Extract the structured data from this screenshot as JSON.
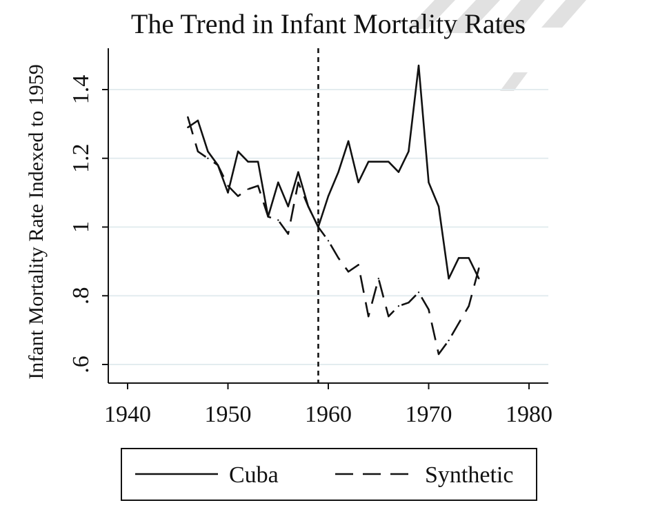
{
  "chart_data": {
    "type": "line",
    "title": "The Trend in Infant Mortality Rates",
    "xlabel": "",
    "ylabel": "Infant Mortality Rate Indexed to 1959",
    "xlim": [
      1938,
      1982
    ],
    "ylim": [
      0.55,
      1.52
    ],
    "xticks": [
      1940,
      1950,
      1960,
      1970,
      1980
    ],
    "xtick_labels": [
      "1940",
      "1950",
      "1960",
      "1970",
      "1980"
    ],
    "yticks": [
      0.6,
      0.8,
      1.0,
      1.2,
      1.4
    ],
    "ytick_labels": [
      ".6",
      ".8",
      "1",
      "1.2",
      "1.4"
    ],
    "grid": true,
    "reference_line_x": 1959,
    "legend_position": "bottom",
    "series": [
      {
        "name": "Cuba",
        "style": "solid",
        "x": [
          1946,
          1947,
          1948,
          1949,
          1950,
          1951,
          1952,
          1953,
          1954,
          1955,
          1956,
          1957,
          1958,
          1959,
          1960,
          1961,
          1962,
          1963,
          1964,
          1965,
          1966,
          1967,
          1968,
          1969,
          1970,
          1971,
          1972,
          1973,
          1974,
          1975
        ],
        "values": [
          1.29,
          1.31,
          1.22,
          1.18,
          1.1,
          1.22,
          1.19,
          1.19,
          1.03,
          1.13,
          1.06,
          1.16,
          1.06,
          1.0,
          1.09,
          1.16,
          1.25,
          1.13,
          1.19,
          1.19,
          1.19,
          1.16,
          1.22,
          1.47,
          1.13,
          1.06,
          0.85,
          0.91,
          0.91,
          0.85
        ]
      },
      {
        "name": "Synthetic",
        "style": "dashed",
        "x": [
          1946,
          1947,
          1948,
          1949,
          1950,
          1951,
          1952,
          1953,
          1954,
          1955,
          1956,
          1957,
          1958,
          1959,
          1960,
          1961,
          1962,
          1963,
          1964,
          1965,
          1966,
          1967,
          1968,
          1969,
          1970,
          1971,
          1972,
          1973,
          1974,
          1975
        ],
        "values": [
          1.32,
          1.22,
          1.2,
          1.18,
          1.12,
          1.09,
          1.11,
          1.12,
          1.03,
          1.02,
          0.98,
          1.13,
          1.06,
          1.0,
          0.96,
          0.91,
          0.87,
          0.89,
          0.74,
          0.85,
          0.74,
          0.77,
          0.78,
          0.81,
          0.76,
          0.63,
          0.67,
          0.72,
          0.77,
          0.88
        ]
      }
    ]
  }
}
